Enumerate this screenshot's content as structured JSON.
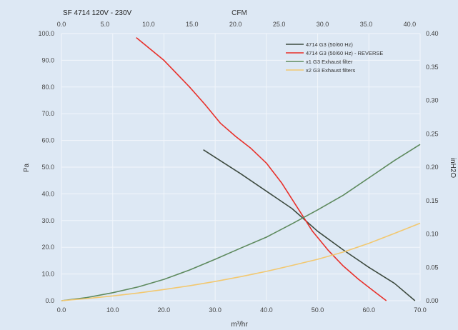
{
  "chart_data": {
    "type": "line",
    "title": "SF 4714  120V - 230V",
    "xlabel": "m³/hr",
    "ylabel": "Pa",
    "x2label": "CFM",
    "y2label": "inH2O",
    "xlim": [
      0,
      70
    ],
    "ylim": [
      0,
      100
    ],
    "x2lim": [
      0,
      41.2
    ],
    "y2lim": [
      0,
      0.4
    ],
    "x_ticks": [
      "0.0",
      "10.0",
      "20.0",
      "30.0",
      "40.0",
      "50.0",
      "60.0",
      "70.0"
    ],
    "y_ticks": [
      "0.0",
      "10.0",
      "20.0",
      "30.0",
      "40.0",
      "50.0",
      "60.0",
      "70.0",
      "80.0",
      "90.0",
      "100.0"
    ],
    "x2_ticks": [
      "0.0",
      "5.0",
      "10.0",
      "15.0",
      "20.0",
      "25.0",
      "30.0",
      "35.0",
      "40.0"
    ],
    "y2_ticks": [
      "0.00",
      "0.05",
      "0.10",
      "0.15",
      "0.20",
      "0.25",
      "0.30",
      "0.35",
      "0.40"
    ],
    "grid": true,
    "legend": "top-right",
    "series": [
      {
        "name": "4714 G3 (50/60 Hz)",
        "color": "#3d4a3f",
        "points": [
          [
            27.7,
            56.5
          ],
          [
            35,
            47.5
          ],
          [
            40,
            41
          ],
          [
            45,
            34.5
          ],
          [
            50,
            26
          ],
          [
            55,
            19
          ],
          [
            60,
            12.5
          ],
          [
            65,
            6.5
          ],
          [
            69,
            0
          ]
        ]
      },
      {
        "name": "4714 G3 (50/60 Hz) - REVERSE",
        "color": "#e8302a",
        "points": [
          [
            14.6,
            98.5
          ],
          [
            20,
            90
          ],
          [
            25,
            80
          ],
          [
            28,
            73.5
          ],
          [
            31,
            66.5
          ],
          [
            34,
            61.5
          ],
          [
            37,
            57
          ],
          [
            40,
            51.5
          ],
          [
            43,
            44
          ],
          [
            46,
            35
          ],
          [
            49,
            26
          ],
          [
            52,
            19
          ],
          [
            55,
            13
          ],
          [
            58,
            8
          ],
          [
            61,
            3.5
          ],
          [
            63.4,
            0
          ]
        ]
      },
      {
        "name": "x1 G3 Exhaust filter",
        "color": "#5e8a5e",
        "points": [
          [
            0,
            0
          ],
          [
            5,
            1.2
          ],
          [
            10,
            3.0
          ],
          [
            15,
            5.2
          ],
          [
            20,
            8.0
          ],
          [
            25,
            11.5
          ],
          [
            30,
            15.5
          ],
          [
            35,
            19.7
          ],
          [
            40,
            23.8
          ],
          [
            45,
            28.8
          ],
          [
            50,
            34.0
          ],
          [
            55,
            39.5
          ],
          [
            60,
            46.0
          ],
          [
            65,
            52.5
          ],
          [
            70,
            58.5
          ]
        ]
      },
      {
        "name": "x2 G3 Exhaust filters",
        "color": "#f2c870",
        "points": [
          [
            0,
            0
          ],
          [
            5,
            0.8
          ],
          [
            10,
            1.8
          ],
          [
            15,
            2.9
          ],
          [
            20,
            4.2
          ],
          [
            25,
            5.6
          ],
          [
            30,
            7.2
          ],
          [
            35,
            9.0
          ],
          [
            40,
            11.0
          ],
          [
            45,
            13.2
          ],
          [
            50,
            15.5
          ],
          [
            55,
            18.2
          ],
          [
            60,
            21.5
          ],
          [
            65,
            25.2
          ],
          [
            70,
            29.0
          ]
        ]
      }
    ]
  }
}
